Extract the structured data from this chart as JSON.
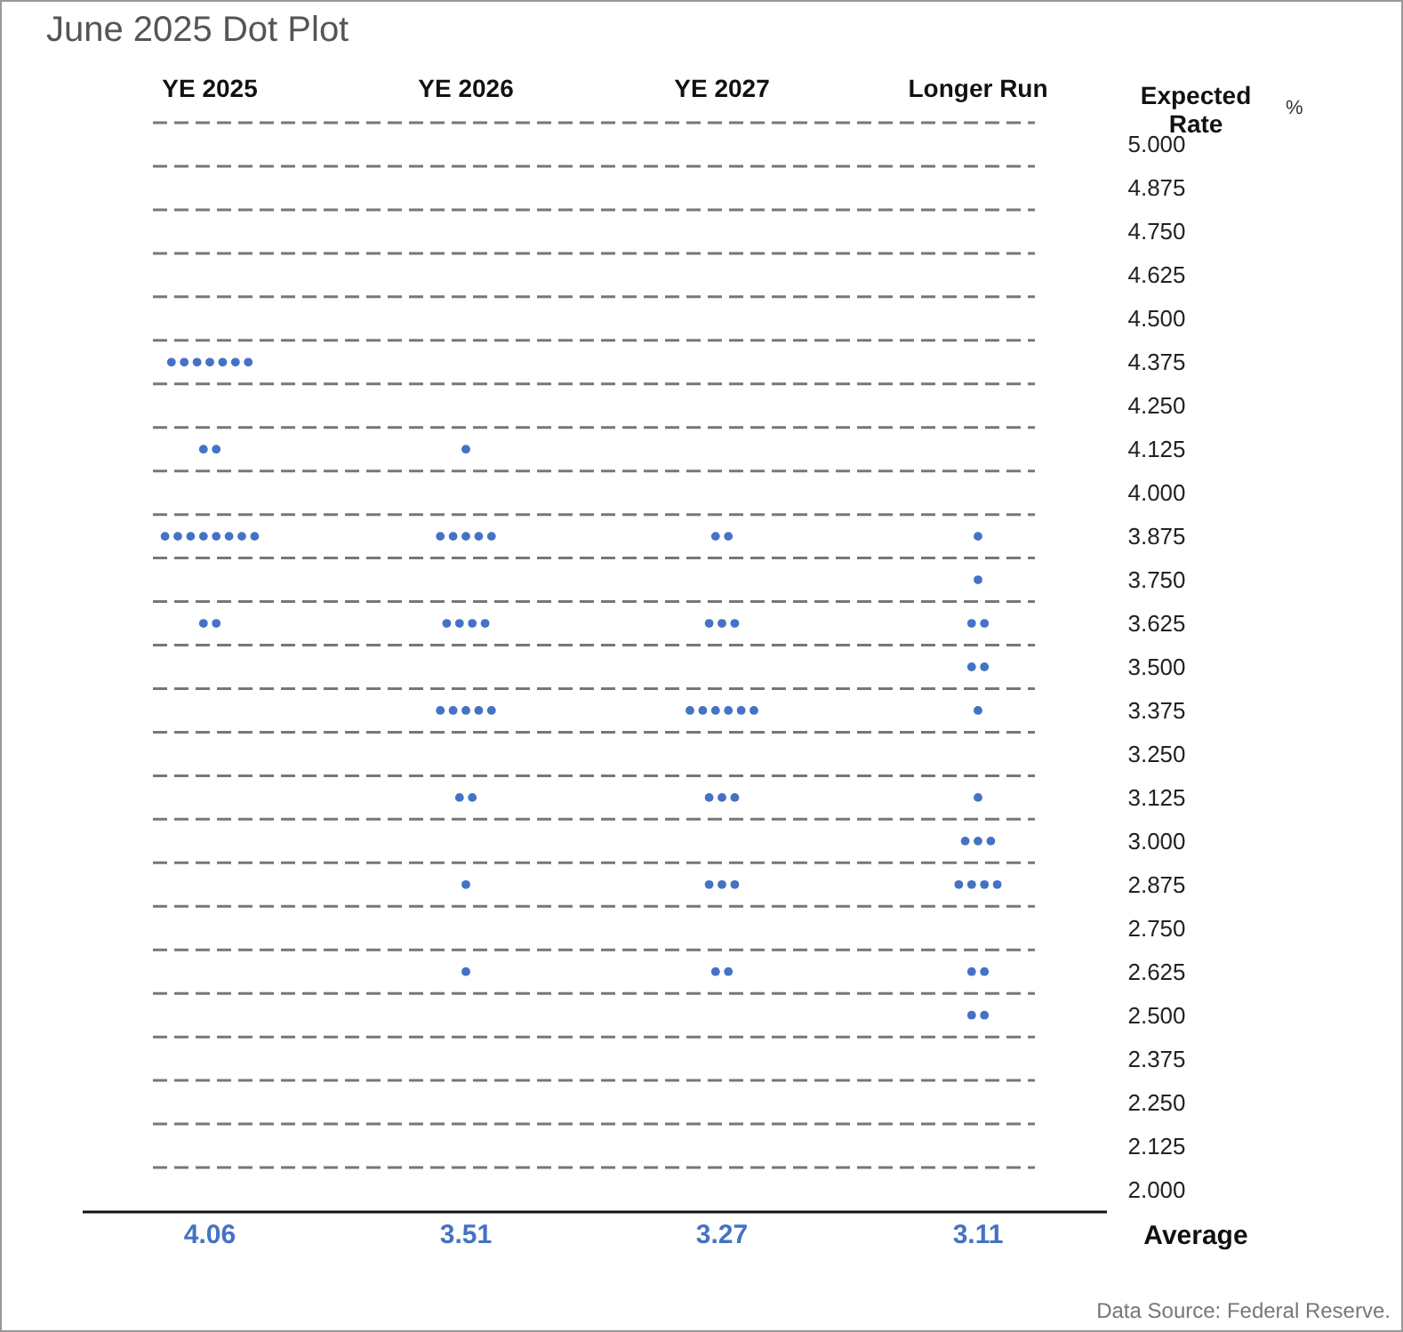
{
  "chart_data": {
    "type": "scatter",
    "title": "June 2025 Dot Plot",
    "ylabel": "Expected Rate",
    "categories": [
      "YE 2025",
      "YE 2026",
      "YE 2027",
      "Longer Run"
    ],
    "series": [
      {
        "color": "#4472c4",
        "marker": "circle",
        "x": [
          "YE 2025",
          "YE 2025",
          "YE 2025",
          "YE 2025",
          "YE 2025",
          "YE 2025",
          "YE 2025",
          "YE 2025",
          "YE 2025",
          "YE 2025",
          "YE 2025",
          "YE 2025",
          "YE 2025",
          "YE 2025",
          "YE 2025",
          "YE 2025",
          "YE 2025",
          "YE 2025",
          "YE 2025",
          "YE 2026",
          "YE 2026",
          "YE 2026",
          "YE 2026",
          "YE 2026",
          "YE 2026",
          "YE 2026",
          "YE 2026",
          "YE 2026",
          "YE 2026",
          "YE 2026",
          "YE 2026",
          "YE 2026",
          "YE 2026",
          "YE 2026",
          "YE 2026",
          "YE 2026",
          "YE 2026",
          "YE 2026",
          "YE 2027",
          "YE 2027",
          "YE 2027",
          "YE 2027",
          "YE 2027",
          "YE 2027",
          "YE 2027",
          "YE 2027",
          "YE 2027",
          "YE 2027",
          "YE 2027",
          "YE 2027",
          "YE 2027",
          "YE 2027",
          "YE 2027",
          "YE 2027",
          "YE 2027",
          "YE 2027",
          "YE 2027",
          "Longer Run",
          "Longer Run",
          "Longer Run",
          "Longer Run",
          "Longer Run",
          "Longer Run",
          "Longer Run",
          "Longer Run",
          "Longer Run",
          "Longer Run",
          "Longer Run",
          "Longer Run",
          "Longer Run",
          "Longer Run",
          "Longer Run",
          "Longer Run",
          "Longer Run",
          "Longer Run",
          "Longer Run"
        ],
        "values": [
          4.375,
          4.375,
          4.375,
          4.375,
          4.375,
          4.375,
          4.375,
          4.125,
          4.125,
          3.875,
          3.875,
          3.875,
          3.875,
          3.875,
          3.875,
          3.875,
          3.875,
          3.625,
          3.625,
          4.125,
          3.875,
          3.875,
          3.875,
          3.875,
          3.875,
          3.625,
          3.625,
          3.625,
          3.625,
          3.375,
          3.375,
          3.375,
          3.375,
          3.375,
          3.125,
          3.125,
          2.875,
          2.625,
          3.875,
          3.875,
          3.625,
          3.625,
          3.625,
          3.375,
          3.375,
          3.375,
          3.375,
          3.375,
          3.375,
          3.125,
          3.125,
          3.125,
          2.875,
          2.875,
          2.875,
          2.625,
          2.625,
          3.875,
          3.75,
          3.625,
          3.625,
          3.5,
          3.5,
          3.375,
          3.125,
          3.0,
          3.0,
          3.0,
          2.875,
          2.875,
          2.875,
          2.875,
          2.625,
          2.625,
          2.5,
          2.5
        ]
      }
    ],
    "ylim": [
      1.9375,
      5.0625
    ],
    "yticks": [
      {
        "value": 5,
        "label": "5.000"
      },
      {
        "value": 4.875,
        "label": "4.875"
      },
      {
        "value": 4.75,
        "label": "4.750"
      },
      {
        "value": 4.625,
        "label": "4.625"
      },
      {
        "value": 4.5,
        "label": "4.500"
      },
      {
        "value": 4.375,
        "label": "4.375"
      },
      {
        "value": 4.25,
        "label": "4.250"
      },
      {
        "value": 4.125,
        "label": "4.125"
      },
      {
        "value": 4,
        "label": "4.000"
      },
      {
        "value": 3.875,
        "label": "3.875"
      },
      {
        "value": 3.75,
        "label": "3.750"
      },
      {
        "value": 3.625,
        "label": "3.625"
      },
      {
        "value": 3.5,
        "label": "3.500"
      },
      {
        "value": 3.375,
        "label": "3.375"
      },
      {
        "value": 3.25,
        "label": "3.250"
      },
      {
        "value": 3.125,
        "label": "3.125"
      },
      {
        "value": 3,
        "label": "3.000"
      },
      {
        "value": 2.875,
        "label": "2.875"
      },
      {
        "value": 2.75,
        "label": "2.750"
      },
      {
        "value": 2.625,
        "label": "2.625"
      },
      {
        "value": 2.5,
        "label": "2.500"
      },
      {
        "value": 2.375,
        "label": "2.375"
      },
      {
        "value": 2.25,
        "label": "2.250"
      },
      {
        "value": 2.125,
        "label": "2.125"
      },
      {
        "value": 2,
        "label": "2.000"
      }
    ],
    "ref_lines": [
      {
        "axis": "y",
        "value": 5.0625,
        "line_style": "dashed",
        "color": "#777777"
      },
      {
        "axis": "y",
        "value": 4.9375,
        "line_style": "dashed",
        "color": "#777777"
      },
      {
        "axis": "y",
        "value": 4.8125,
        "line_style": "dashed",
        "color": "#777777"
      },
      {
        "axis": "y",
        "value": 4.6875,
        "line_style": "dashed",
        "color": "#777777"
      },
      {
        "axis": "y",
        "value": 4.5625,
        "line_style": "dashed",
        "color": "#777777"
      },
      {
        "axis": "y",
        "value": 4.4375,
        "line_style": "dashed",
        "color": "#777777"
      },
      {
        "axis": "y",
        "value": 4.3125,
        "line_style": "dashed",
        "color": "#777777"
      },
      {
        "axis": "y",
        "value": 4.1875,
        "line_style": "dashed",
        "color": "#777777"
      },
      {
        "axis": "y",
        "value": 4.0625,
        "line_style": "dashed",
        "color": "#777777"
      },
      {
        "axis": "y",
        "value": 3.9375,
        "line_style": "dashed",
        "color": "#777777"
      },
      {
        "axis": "y",
        "value": 3.8125,
        "line_style": "dashed",
        "color": "#777777"
      },
      {
        "axis": "y",
        "value": 3.6875,
        "line_style": "dashed",
        "color": "#777777"
      },
      {
        "axis": "y",
        "value": 3.5625,
        "line_style": "dashed",
        "color": "#777777"
      },
      {
        "axis": "y",
        "value": 3.4375,
        "line_style": "dashed",
        "color": "#777777"
      },
      {
        "axis": "y",
        "value": 3.3125,
        "line_style": "dashed",
        "color": "#777777"
      },
      {
        "axis": "y",
        "value": 3.1875,
        "line_style": "dashed",
        "color": "#777777"
      },
      {
        "axis": "y",
        "value": 3.0625,
        "line_style": "dashed",
        "color": "#777777"
      },
      {
        "axis": "y",
        "value": 2.9375,
        "line_style": "dashed",
        "color": "#777777"
      },
      {
        "axis": "y",
        "value": 2.8125,
        "line_style": "dashed",
        "color": "#777777"
      },
      {
        "axis": "y",
        "value": 2.6875,
        "line_style": "dashed",
        "color": "#777777"
      },
      {
        "axis": "y",
        "value": 2.5625,
        "line_style": "dashed",
        "color": "#777777"
      },
      {
        "axis": "y",
        "value": 2.4375,
        "line_style": "dashed",
        "color": "#777777"
      },
      {
        "axis": "y",
        "value": 2.3125,
        "line_style": "dashed",
        "color": "#777777"
      },
      {
        "axis": "y",
        "value": 2.1875,
        "line_style": "dashed",
        "color": "#777777"
      },
      {
        "axis": "y",
        "value": 2.0625,
        "line_style": "dashed",
        "color": "#777777"
      }
    ],
    "annotations": [
      "Data Source: Federal Reserve.",
      "%",
      "Average",
      "4.06",
      "3.51",
      "3.27",
      "3.11"
    ]
  }
}
